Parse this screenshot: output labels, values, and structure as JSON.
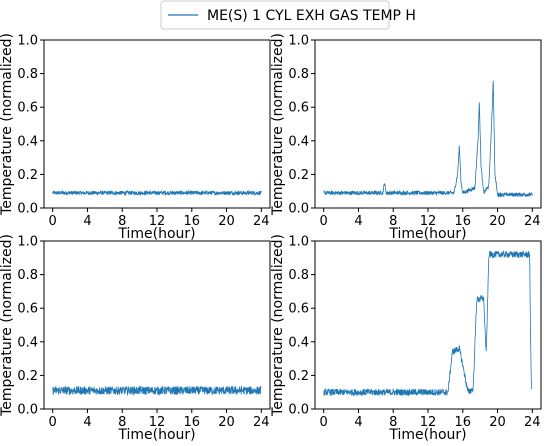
{
  "legend": {
    "label": "ME(S) 1 CYL EXH GAS TEMP H"
  },
  "colors": {
    "series": "#1f77b4",
    "axis": "#000000",
    "legend_border": "#cccccc"
  },
  "chart_data": [
    {
      "type": "line",
      "position_label": "top-left",
      "xlabel": "Time(hour)",
      "ylabel": "Temperature (normalized)",
      "xlim": [
        -1,
        25
      ],
      "ylim": [
        0,
        1.0
      ],
      "xticks": [
        0,
        4,
        8,
        12,
        16,
        20,
        24
      ],
      "yticks": [
        0.0,
        0.2,
        0.4,
        0.6,
        0.8,
        1.0
      ],
      "series": [
        {
          "name": "ME(S) 1 CYL EXH GAS TEMP H",
          "x": [
            0,
            24
          ],
          "y": [
            0.09,
            0.09
          ],
          "noise": 0.012
        }
      ]
    },
    {
      "type": "line",
      "position_label": "top-right",
      "xlabel": "Time(hour)",
      "ylabel": "Temperature (normalized)",
      "xlim": [
        -1,
        25
      ],
      "ylim": [
        0,
        1.0
      ],
      "xticks": [
        0,
        4,
        8,
        12,
        16,
        20,
        24
      ],
      "yticks": [
        0.0,
        0.2,
        0.4,
        0.6,
        0.8,
        1.0
      ],
      "series": [
        {
          "name": "ME(S) 1 CYL EXH GAS TEMP H",
          "x": [
            0,
            6.8,
            7.0,
            7.2,
            15.0,
            15.4,
            15.6,
            15.8,
            16.0,
            17.4,
            17.8,
            17.9,
            18.1,
            18.4,
            19.0,
            19.4,
            19.5,
            19.7,
            20.0,
            24
          ],
          "y": [
            0.09,
            0.09,
            0.15,
            0.09,
            0.09,
            0.2,
            0.37,
            0.15,
            0.09,
            0.12,
            0.45,
            0.65,
            0.25,
            0.09,
            0.13,
            0.6,
            0.78,
            0.2,
            0.08,
            0.08
          ],
          "noise": 0.012
        }
      ]
    },
    {
      "type": "line",
      "position_label": "bottom-left",
      "xlabel": "Time(hour)",
      "ylabel": "Temperature (normalized)",
      "xlim": [
        -1,
        25
      ],
      "ylim": [
        0,
        1.0
      ],
      "xticks": [
        0,
        4,
        8,
        12,
        16,
        20,
        24
      ],
      "yticks": [
        0.0,
        0.2,
        0.4,
        0.6,
        0.8,
        1.0
      ],
      "series": [
        {
          "name": "ME(S) 1 CYL EXH GAS TEMP H",
          "x": [
            0,
            24
          ],
          "y": [
            0.11,
            0.11
          ],
          "noise": 0.025
        }
      ]
    },
    {
      "type": "line",
      "position_label": "bottom-right",
      "xlabel": "Time(hour)",
      "ylabel": "Temperature (normalized)",
      "xlim": [
        -1,
        25
      ],
      "ylim": [
        0,
        1.0
      ],
      "xticks": [
        0,
        4,
        8,
        12,
        16,
        20,
        24
      ],
      "yticks": [
        0.0,
        0.2,
        0.4,
        0.6,
        0.8,
        1.0
      ],
      "series": [
        {
          "name": "ME(S) 1 CYL EXH GAS TEMP H",
          "x": [
            0,
            14.3,
            14.8,
            15.6,
            16.0,
            16.6,
            17.2,
            17.6,
            18.4,
            18.7,
            19.0,
            23.7,
            23.8,
            23.9
          ],
          "y": [
            0.1,
            0.1,
            0.34,
            0.36,
            0.26,
            0.1,
            0.12,
            0.65,
            0.66,
            0.32,
            0.92,
            0.92,
            0.4,
            0.13
          ],
          "noise": 0.02
        }
      ]
    }
  ]
}
